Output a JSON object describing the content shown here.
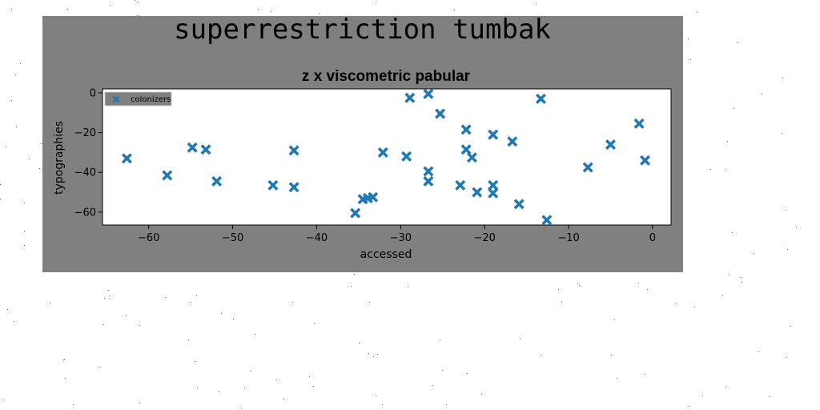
{
  "suptitle": "superrestriction tumbak",
  "chart_data": {
    "type": "scatter",
    "title": "z x viscometric pabular",
    "xlabel": "accessed",
    "ylabel": "typographies",
    "xlim": [
      -65.5,
      2.2
    ],
    "ylim": [
      -66.5,
      2.0
    ],
    "xticks": [
      -60,
      -50,
      -40,
      -30,
      -20,
      -10,
      0
    ],
    "yticks": [
      0,
      -20,
      -40,
      -60
    ],
    "grid": false,
    "legend_position": "upper-left",
    "marker": "X",
    "color": "#1f77b4",
    "series": [
      {
        "name": "colonizers",
        "points": [
          [
            -62.6,
            -33
          ],
          [
            -57.8,
            -41.5
          ],
          [
            -54.8,
            -27.5
          ],
          [
            -53.2,
            -28.5
          ],
          [
            -51.9,
            -44.5
          ],
          [
            -45.2,
            -46.5
          ],
          [
            -42.7,
            -29
          ],
          [
            -42.7,
            -47.5
          ],
          [
            -35.4,
            -60.5
          ],
          [
            -34.5,
            -53.5
          ],
          [
            -33.9,
            -53
          ],
          [
            -33.3,
            -52.5
          ],
          [
            -32.1,
            -30
          ],
          [
            -29.3,
            -32
          ],
          [
            -28.9,
            -2.5
          ],
          [
            -26.7,
            -0.5
          ],
          [
            -26.7,
            -39.5
          ],
          [
            -26.7,
            -44.5
          ],
          [
            -25.3,
            -10.5
          ],
          [
            -22.9,
            -46.5
          ],
          [
            -22.2,
            -18.5
          ],
          [
            -22.2,
            -28.5
          ],
          [
            -21.5,
            -32.5
          ],
          [
            -20.9,
            -50
          ],
          [
            -19.0,
            -21
          ],
          [
            -19.0,
            -46.5
          ],
          [
            -19.0,
            -50.5
          ],
          [
            -16.7,
            -24.5
          ],
          [
            -15.9,
            -56
          ],
          [
            -13.3,
            -3
          ],
          [
            -12.6,
            -64
          ],
          [
            -7.7,
            -37.5
          ],
          [
            -5.0,
            -26
          ],
          [
            -1.6,
            -15.5
          ],
          [
            -0.9,
            -34
          ]
        ]
      }
    ]
  }
}
